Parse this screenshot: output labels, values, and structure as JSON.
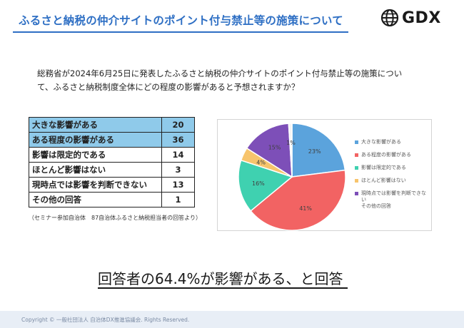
{
  "header": {
    "title": "ふるさと納税の仲介サイトのポイント付与禁止等の施策について",
    "logo_text": "GDX",
    "accent_color": "#2e6fc4"
  },
  "question": {
    "line1": "総務省が2024年6月25日に発表したふるさと納税の仲介サイトのポイント付与禁止等の施策につい",
    "line2": "て、ふるさと納税制度全体にどの程度の影響があると予想されますか？"
  },
  "table": {
    "rows": [
      {
        "label": "大きな影響がある",
        "value": "20"
      },
      {
        "label": "ある程度の影響がある",
        "value": "36"
      },
      {
        "label": "影響は限定的である",
        "value": "14"
      },
      {
        "label": "ほとんど影響はない",
        "value": "3"
      },
      {
        "label": "現時点では影響を判断できない",
        "value": "13"
      },
      {
        "label": "その他の回答",
        "value": "1"
      }
    ],
    "highlight_color": "#8fcaea"
  },
  "note": "（セミナー参加自治体　87自治体ふるさと納税担当者の回答より）",
  "chart_data": {
    "type": "pie",
    "categories": [
      "大きな影響がある",
      "ある程度の影響がある",
      "影響は限定的である",
      "ほとんど影響はない",
      "現時点では影響を判断できない",
      "その他の回答"
    ],
    "values": [
      23,
      41,
      16,
      4,
      15,
      1
    ],
    "labels": [
      "23%",
      "41%",
      "16%",
      "4%",
      "15%",
      "1%"
    ],
    "colors": [
      "#5ba3dc",
      "#f26363",
      "#3fd1b0",
      "#f7c46c",
      "#7d4fb8",
      "#f4f4f4"
    ],
    "legend": {
      "placement": "right",
      "items": [
        "大きな影響がある",
        "ある程度の影響がある",
        "影響は限定的である",
        "ほとんど影響はない",
        "現時点では影響を判断できない",
        "その他の回答"
      ]
    }
  },
  "conclusion": "回答者の64.4%が影響がある、と回答",
  "footer": "Copyright © 一般社団法人 自治体DX推進協議会. Rights Reserved."
}
